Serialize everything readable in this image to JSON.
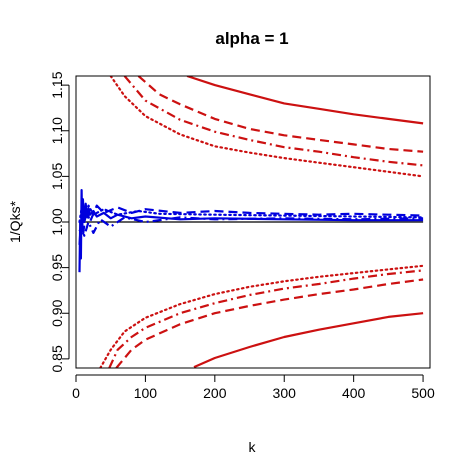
{
  "chart_data": {
    "type": "line",
    "title": "alpha = 1",
    "xlabel": "k",
    "ylabel": "1/Qks*",
    "xlim": [
      0,
      510
    ],
    "ylim": [
      0.84,
      1.16
    ],
    "x_ticks": [
      0,
      100,
      200,
      300,
      400,
      500
    ],
    "y_ticks": [
      0.85,
      0.9,
      0.95,
      1.0,
      1.05,
      1.1,
      1.15
    ],
    "y_tick_labels": [
      "0.85",
      "0.90",
      "0.95",
      "1.00",
      "1.05",
      "1.10",
      "1.15"
    ],
    "grid": false,
    "colors": {
      "red": "#cc1111",
      "blue": "#0000dd",
      "black": "#000000"
    },
    "series": [
      {
        "color": "red",
        "style": "solid",
        "x": [
          170,
          200,
          250,
          300,
          350,
          400,
          450,
          500
        ],
        "y": [
          0.841,
          0.851,
          0.863,
          0.874,
          0.882,
          0.889,
          0.896,
          0.9
        ]
      },
      {
        "color": "red",
        "style": "dashed",
        "x": [
          58,
          80,
          100,
          150,
          200,
          250,
          300,
          350,
          400,
          450,
          500
        ],
        "y": [
          0.84,
          0.86,
          0.871,
          0.888,
          0.9,
          0.908,
          0.915,
          0.921,
          0.926,
          0.932,
          0.937
        ]
      },
      {
        "color": "red",
        "style": "dashdot",
        "x": [
          48,
          60,
          80,
          100,
          150,
          200,
          250,
          300,
          350,
          400,
          450,
          500
        ],
        "y": [
          0.84,
          0.86,
          0.874,
          0.884,
          0.9,
          0.911,
          0.92,
          0.927,
          0.932,
          0.938,
          0.943,
          0.947
        ]
      },
      {
        "color": "red",
        "style": "dotted",
        "x": [
          35,
          50,
          70,
          100,
          150,
          200,
          250,
          300,
          350,
          400,
          450,
          500
        ],
        "y": [
          0.84,
          0.86,
          0.88,
          0.895,
          0.91,
          0.921,
          0.929,
          0.935,
          0.94,
          0.944,
          0.948,
          0.952
        ]
      },
      {
        "color": "red",
        "style": "solid",
        "x": [
          160,
          200,
          250,
          300,
          350,
          400,
          450,
          500
        ],
        "y": [
          1.16,
          1.15,
          1.14,
          1.13,
          1.124,
          1.118,
          1.113,
          1.108
        ]
      },
      {
        "color": "red",
        "style": "dashed",
        "x": [
          90,
          120,
          150,
          200,
          250,
          300,
          350,
          400,
          450,
          500
        ],
        "y": [
          1.16,
          1.14,
          1.129,
          1.113,
          1.102,
          1.095,
          1.09,
          1.085,
          1.08,
          1.077
        ]
      },
      {
        "color": "red",
        "style": "dashdot",
        "x": [
          70,
          100,
          150,
          200,
          250,
          300,
          350,
          400,
          450,
          500
        ],
        "y": [
          1.16,
          1.133,
          1.112,
          1.099,
          1.09,
          1.082,
          1.077,
          1.071,
          1.066,
          1.062
        ]
      },
      {
        "color": "red",
        "style": "dotted",
        "x": [
          50,
          70,
          100,
          150,
          200,
          250,
          300,
          350,
          400,
          450,
          500
        ],
        "y": [
          1.16,
          1.138,
          1.116,
          1.096,
          1.083,
          1.076,
          1.07,
          1.065,
          1.06,
          1.055,
          1.05
        ]
      },
      {
        "color": "black",
        "style": "solid",
        "x": [
          5,
          500
        ],
        "y": [
          1.0,
          1.0
        ]
      },
      {
        "color": "blue",
        "style": "solid",
        "x": [
          5,
          6,
          7,
          8,
          9,
          10,
          12,
          14,
          16,
          18,
          20,
          25,
          30,
          40,
          50,
          60,
          80,
          100,
          150,
          200,
          300,
          400,
          500
        ],
        "y": [
          0.945,
          1.0,
          0.96,
          1.035,
          0.99,
          1.025,
          1.0,
          1.02,
          1.005,
          1.015,
          1.008,
          1.012,
          1.006,
          1.01,
          1.004,
          1.008,
          1.004,
          1.006,
          1.003,
          1.004,
          1.003,
          1.002,
          1.002
        ]
      },
      {
        "color": "blue",
        "style": "dashed",
        "x": [
          5,
          8,
          10,
          15,
          20,
          30,
          40,
          60,
          80,
          100,
          150,
          200,
          250,
          300,
          350,
          400,
          450,
          500
        ],
        "y": [
          0.975,
          1.01,
          0.985,
          1.015,
          1.0,
          1.018,
          1.01,
          1.016,
          1.01,
          1.014,
          1.01,
          1.012,
          1.01,
          1.009,
          1.008,
          1.009,
          1.008,
          1.007
        ]
      },
      {
        "color": "blue",
        "style": "dashdot",
        "x": [
          5,
          8,
          12,
          18,
          25,
          35,
          50,
          70,
          100,
          150,
          200,
          300,
          400,
          500
        ],
        "y": [
          0.99,
          0.995,
          0.985,
          1.0,
          0.988,
          1.003,
          0.995,
          1.005,
          1.0,
          1.005,
          1.003,
          1.004,
          1.003,
          1.004
        ]
      },
      {
        "color": "blue",
        "style": "dotted",
        "x": [
          5,
          8,
          12,
          18,
          25,
          40,
          60,
          90,
          120,
          200,
          300,
          400,
          500
        ],
        "y": [
          1.0,
          1.015,
          1.005,
          1.018,
          1.008,
          1.014,
          1.008,
          1.012,
          1.009,
          1.008,
          1.007,
          1.006,
          1.005
        ]
      }
    ]
  }
}
